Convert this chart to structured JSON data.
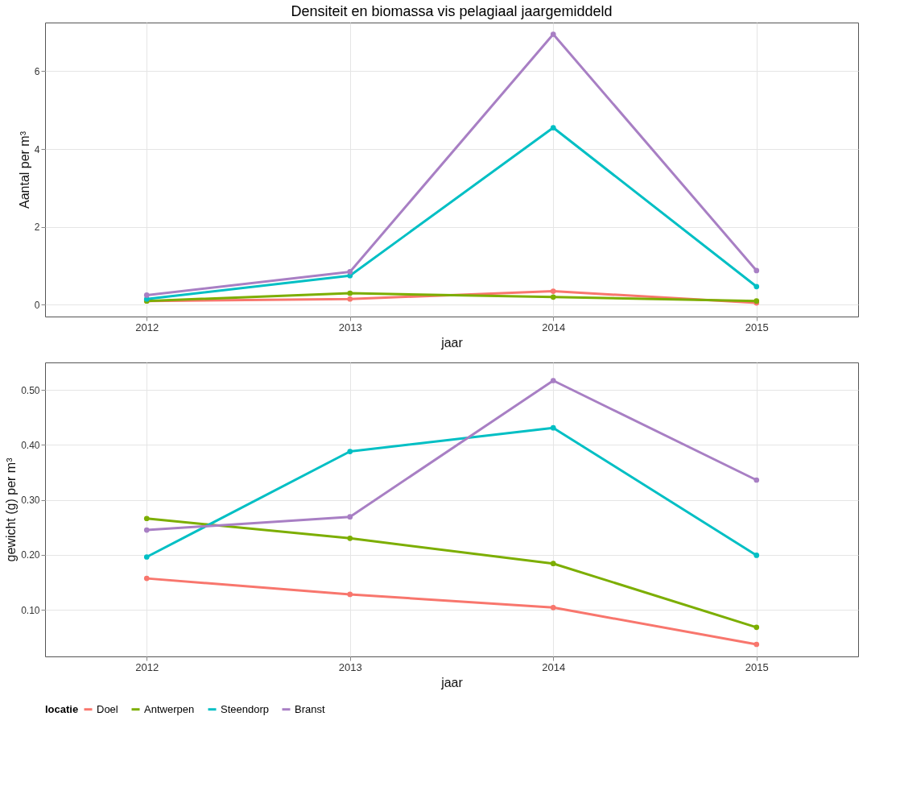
{
  "chart_data": [
    {
      "type": "line",
      "title": "Densiteit en biomassa vis pelagiaal jaargemiddeld",
      "xlabel": "jaar",
      "ylabel": "Aantal per m³",
      "x": [
        2012,
        2013,
        2014,
        2015
      ],
      "xlim": [
        2011.5,
        2015.5
      ],
      "xticks": [
        2012,
        2013,
        2014,
        2015
      ],
      "ylim": [
        -0.3,
        7.25
      ],
      "yticks": [
        0,
        2,
        4,
        6
      ],
      "grid": true,
      "legend": "bottom",
      "marker": "circle",
      "line_style": "solid",
      "series": [
        {
          "name": "Doel",
          "color": "#f8766d",
          "values": [
            0.1,
            0.15,
            0.35,
            0.05
          ]
        },
        {
          "name": "Antwerpen",
          "color": "#7cae00",
          "values": [
            0.1,
            0.3,
            0.2,
            0.1
          ]
        },
        {
          "name": "Steendorp",
          "color": "#00bfc4",
          "values": [
            0.15,
            0.75,
            4.55,
            0.47
          ]
        },
        {
          "name": "Branst",
          "color": "#a87fc4",
          "values": [
            0.25,
            0.85,
            6.95,
            0.88
          ]
        }
      ]
    },
    {
      "type": "line",
      "xlabel": "jaar",
      "ylabel": "gewicht (g) per m³",
      "legend_title": "locatie",
      "x": [
        2012,
        2013,
        2014,
        2015
      ],
      "xlim": [
        2011.5,
        2015.5
      ],
      "xticks": [
        2012,
        2013,
        2014,
        2015
      ],
      "ylim": [
        0.015,
        0.55
      ],
      "yticks": [
        {
          "value": 0.1,
          "label": "0.10"
        },
        {
          "value": 0.2,
          "label": "0.20"
        },
        {
          "value": 0.3,
          "label": "0.30"
        },
        {
          "value": 0.4,
          "label": "0.40"
        },
        {
          "value": 0.5,
          "label": "0.50"
        }
      ],
      "grid": true,
      "legend": "bottom",
      "marker": "circle",
      "line_style": "solid",
      "series": [
        {
          "name": "Doel",
          "color": "#f8766d",
          "values": [
            0.157,
            0.128,
            0.104,
            0.037
          ]
        },
        {
          "name": "Antwerpen",
          "color": "#7cae00",
          "values": [
            0.266,
            0.23,
            0.184,
            0.068
          ]
        },
        {
          "name": "Steendorp",
          "color": "#00bfc4",
          "values": [
            0.196,
            0.388,
            0.431,
            0.199
          ]
        },
        {
          "name": "Branst",
          "color": "#a87fc4",
          "values": [
            0.245,
            0.269,
            0.517,
            0.336
          ]
        }
      ]
    }
  ]
}
